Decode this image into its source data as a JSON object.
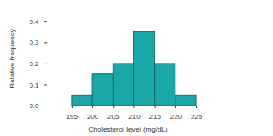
{
  "chart_data": {
    "type": "histogram",
    "x_label": "Cholesterol level (mg/dL)",
    "y_label": "Relative frequency",
    "bins": [
      195,
      200,
      205,
      210,
      215,
      220,
      225
    ],
    "values": [
      0.05,
      0.15,
      0.2,
      0.35,
      0.2,
      0.05
    ],
    "color": "#1aa7a7",
    "xlim": [
      189,
      228
    ],
    "xticks": [
      195,
      200,
      205,
      210,
      215,
      220,
      225
    ],
    "ylim": [
      0,
      0.45
    ],
    "yticks": [
      {
        "value": 0,
        "label": "0.0"
      },
      0.1,
      0.2,
      0.3,
      0.4
    ],
    "grid": false
  }
}
